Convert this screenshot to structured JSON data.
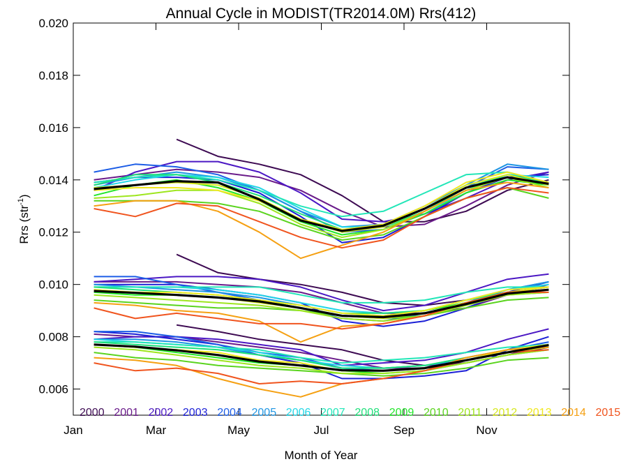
{
  "chart_data": {
    "type": "line",
    "title": "Annual Cycle in MODIST(TR2014.0M) Rrs(412)",
    "xlabel": "Month of Year",
    "ylabel_main": "Rrs (str",
    "ylabel_sup": "-1",
    "ylabel_tail": ")",
    "xlim": [
      1,
      13
    ],
    "ylim": [
      0.005,
      0.02
    ],
    "x_ticks": [
      {
        "x": 1,
        "label": "Jan"
      },
      {
        "x": 3,
        "label": "Mar"
      },
      {
        "x": 5,
        "label": "May"
      },
      {
        "x": 7,
        "label": "Jul"
      },
      {
        "x": 9,
        "label": "Sep"
      },
      {
        "x": 11,
        "label": "Nov"
      }
    ],
    "y_ticks": [
      {
        "y": 0.006,
        "label": "0.006"
      },
      {
        "y": 0.008,
        "label": "0.008"
      },
      {
        "y": 0.01,
        "label": "0.010"
      },
      {
        "y": 0.012,
        "label": "0.012"
      },
      {
        "y": 0.014,
        "label": "0.014"
      },
      {
        "y": 0.016,
        "label": "0.016"
      },
      {
        "y": 0.018,
        "label": "0.018"
      },
      {
        "y": 0.02,
        "label": "0.020"
      }
    ],
    "grid": false,
    "legend_position": "bottom-inside",
    "months": [
      1.5,
      2.5,
      3.5,
      4.5,
      5.5,
      6.5,
      7.5,
      8.5,
      9.5,
      10.5,
      11.5,
      12.5
    ],
    "mean_color": "#000000",
    "series": [
      {
        "name": "2000",
        "color": "#3d0a52",
        "upper": [
          null,
          null,
          0.01555,
          0.0149,
          0.0146,
          0.0142,
          0.0134,
          0.0124,
          0.0124,
          0.0128,
          0.0136,
          0.014
        ],
        "middle": [
          null,
          null,
          0.01115,
          0.01045,
          0.0102,
          0.01,
          0.0097,
          0.0093,
          0.0092,
          0.0094,
          0.0097,
          0.0099
        ],
        "lower": [
          null,
          null,
          0.00845,
          0.0082,
          0.0079,
          0.0077,
          0.0075,
          0.0071,
          0.0069,
          0.007,
          0.0073,
          0.0076
        ]
      },
      {
        "name": "2001",
        "color": "#6a1b8a",
        "upper": [
          0.014,
          0.0142,
          0.0144,
          0.0143,
          0.0141,
          0.0136,
          0.0128,
          0.0122,
          0.0123,
          0.013,
          0.0138,
          0.0143
        ],
        "middle": [
          0.0101,
          0.0101,
          0.0101,
          0.01,
          0.0099,
          0.0097,
          0.0093,
          0.0089,
          0.0089,
          0.0091,
          0.0096,
          0.01
        ],
        "lower": [
          0.0081,
          0.008,
          0.008,
          0.0078,
          0.0076,
          0.0074,
          0.0071,
          0.0068,
          0.0068,
          0.007,
          0.0073,
          0.0077
        ]
      },
      {
        "name": "2002",
        "color": "#4b17c4",
        "upper": [
          0.0136,
          0.0143,
          0.0147,
          0.0147,
          0.0143,
          0.0135,
          0.0125,
          0.0124,
          0.0127,
          0.0133,
          0.014,
          0.0143
        ],
        "middle": [
          0.0101,
          0.0102,
          0.0103,
          0.0103,
          0.0102,
          0.0099,
          0.0094,
          0.009,
          0.0092,
          0.0097,
          0.0102,
          0.0104
        ],
        "lower": [
          0.0079,
          0.008,
          0.008,
          0.0079,
          0.0077,
          0.0075,
          0.0069,
          0.007,
          0.0071,
          0.0074,
          0.0079,
          0.0083
        ]
      },
      {
        "name": "2003",
        "color": "#1b1fd6",
        "upper": [
          0.0139,
          0.0141,
          0.0141,
          0.014,
          0.0135,
          0.0126,
          0.0116,
          0.0118,
          0.0126,
          0.0135,
          0.0141,
          0.0142
        ],
        "middle": [
          0.01,
          0.01,
          0.01,
          0.0098,
          0.0096,
          0.0093,
          0.0086,
          0.0084,
          0.0086,
          0.0091,
          0.0097,
          0.0101
        ],
        "lower": [
          0.0082,
          0.0081,
          0.0079,
          0.0077,
          0.0073,
          0.007,
          0.0064,
          0.0064,
          0.0065,
          0.0067,
          0.0075,
          0.008
        ]
      },
      {
        "name": "2004",
        "color": "#1c5de6",
        "upper": [
          0.0143,
          0.0146,
          0.0145,
          0.0142,
          0.0136,
          0.0128,
          0.012,
          0.0121,
          0.0128,
          0.0137,
          0.0145,
          0.0144
        ],
        "middle": [
          0.0103,
          0.0103,
          0.01,
          0.0097,
          0.0094,
          0.0091,
          0.0087,
          0.0086,
          0.0089,
          0.0093,
          0.0098,
          0.0101
        ],
        "lower": [
          0.0082,
          0.0082,
          0.008,
          0.0077,
          0.0074,
          0.0072,
          0.0068,
          0.0067,
          0.0068,
          0.0071,
          0.0075,
          0.0078
        ]
      },
      {
        "name": "2005",
        "color": "#1e95e3",
        "upper": [
          0.0138,
          0.0141,
          0.0143,
          0.0141,
          0.0136,
          0.0128,
          0.0122,
          0.0123,
          0.013,
          0.0138,
          0.0146,
          0.0144
        ],
        "middle": [
          0.01,
          0.0099,
          0.0098,
          0.0097,
          0.0095,
          0.0092,
          0.0089,
          0.0088,
          0.009,
          0.0093,
          0.0098,
          0.0101
        ],
        "lower": [
          0.0079,
          0.0079,
          0.0078,
          0.0076,
          0.0073,
          0.0071,
          0.0068,
          0.0068,
          0.0069,
          0.0071,
          0.0075,
          0.0077
        ]
      },
      {
        "name": "2006",
        "color": "#22d6e6",
        "upper": [
          0.0137,
          0.014,
          0.0142,
          0.0141,
          0.0137,
          0.0129,
          0.0122,
          0.0122,
          0.0127,
          0.0136,
          0.0142,
          0.0141
        ],
        "middle": [
          0.0099,
          0.0099,
          0.0099,
          0.0098,
          0.0096,
          0.0093,
          0.009,
          0.0089,
          0.009,
          0.0094,
          0.0098,
          0.01
        ],
        "lower": [
          0.0079,
          0.0078,
          0.0077,
          0.0076,
          0.0074,
          0.0071,
          0.0069,
          0.0068,
          0.0069,
          0.0072,
          0.0075,
          0.0077
        ]
      },
      {
        "name": "2007",
        "color": "#22e6b8",
        "upper": [
          0.0139,
          0.0141,
          0.0142,
          0.014,
          0.0136,
          0.013,
          0.0126,
          0.0128,
          0.0135,
          0.0142,
          0.0143,
          0.0139
        ],
        "middle": [
          0.0099,
          0.0099,
          0.0099,
          0.0099,
          0.0099,
          0.0096,
          0.0093,
          0.0093,
          0.0094,
          0.0097,
          0.0099,
          0.0099
        ],
        "lower": [
          0.0078,
          0.0078,
          0.0077,
          0.0076,
          0.0075,
          0.0072,
          0.007,
          0.0071,
          0.0072,
          0.0074,
          0.0076,
          0.0077
        ]
      },
      {
        "name": "2008",
        "color": "#1ee07a",
        "upper": [
          0.0138,
          0.0142,
          0.0142,
          0.0139,
          0.0134,
          0.0127,
          0.0121,
          0.0122,
          0.0128,
          0.0137,
          0.0142,
          0.0139
        ],
        "middle": [
          0.0099,
          0.0098,
          0.0097,
          0.0096,
          0.0094,
          0.0092,
          0.0089,
          0.0089,
          0.009,
          0.0094,
          0.0097,
          0.0098
        ],
        "lower": [
          0.0078,
          0.0077,
          0.0076,
          0.0075,
          0.0073,
          0.0071,
          0.0068,
          0.0068,
          0.0069,
          0.0072,
          0.0075,
          0.0076
        ]
      },
      {
        "name": "2009",
        "color": "#22e62a",
        "upper": [
          0.0134,
          0.0138,
          0.014,
          0.0137,
          0.0132,
          0.0124,
          0.0119,
          0.0121,
          0.0127,
          0.0135,
          0.014,
          0.0138
        ],
        "middle": [
          0.0097,
          0.0096,
          0.0096,
          0.0095,
          0.0094,
          0.0091,
          0.0088,
          0.0088,
          0.009,
          0.0093,
          0.0096,
          0.0097
        ],
        "lower": [
          0.0077,
          0.0076,
          0.0074,
          0.0072,
          0.007,
          0.0069,
          0.0067,
          0.0066,
          0.0067,
          0.007,
          0.0073,
          0.0075
        ]
      },
      {
        "name": "2010",
        "color": "#5ad41e",
        "upper": [
          0.0132,
          0.0132,
          0.0132,
          0.0131,
          0.0128,
          0.0122,
          0.0117,
          0.0119,
          0.0126,
          0.0133,
          0.0137,
          0.0133
        ],
        "middle": [
          0.0094,
          0.0093,
          0.0092,
          0.0091,
          0.0091,
          0.009,
          0.0088,
          0.0087,
          0.0088,
          0.0091,
          0.0094,
          0.0095
        ],
        "lower": [
          0.0074,
          0.0072,
          0.0071,
          0.0069,
          0.0068,
          0.0067,
          0.0066,
          0.0065,
          0.0066,
          0.0068,
          0.0071,
          0.0072
        ]
      },
      {
        "name": "2011",
        "color": "#9ee61e",
        "upper": [
          0.0133,
          0.0134,
          0.0136,
          0.0136,
          0.0131,
          0.0123,
          0.0118,
          0.0121,
          0.0128,
          0.0136,
          0.0141,
          0.0137
        ],
        "middle": [
          0.0096,
          0.0095,
          0.0094,
          0.0093,
          0.0092,
          0.009,
          0.0087,
          0.0086,
          0.0088,
          0.0092,
          0.0096,
          0.0097
        ],
        "lower": [
          0.0076,
          0.0075,
          0.0073,
          0.0071,
          0.0069,
          0.0068,
          0.0066,
          0.0066,
          0.0067,
          0.007,
          0.0073,
          0.0075
        ]
      },
      {
        "name": "2012",
        "color": "#d6e81e",
        "upper": [
          0.0137,
          0.0138,
          0.0139,
          0.0138,
          0.0133,
          0.0125,
          0.012,
          0.0122,
          0.0129,
          0.0138,
          0.0142,
          0.0138
        ],
        "middle": [
          0.0098,
          0.0097,
          0.0096,
          0.0095,
          0.0093,
          0.0091,
          0.0088,
          0.0087,
          0.0089,
          0.0093,
          0.0097,
          0.0099
        ],
        "lower": [
          0.0077,
          0.0076,
          0.0075,
          0.0073,
          0.0071,
          0.0069,
          0.0067,
          0.0067,
          0.0068,
          0.0071,
          0.0074,
          0.0076
        ]
      },
      {
        "name": "2013",
        "color": "#f0e81e",
        "upper": [
          0.0136,
          0.0137,
          0.0137,
          0.0136,
          0.0132,
          0.0125,
          0.0121,
          0.0123,
          0.013,
          0.0139,
          0.0143,
          0.0139
        ],
        "middle": [
          0.0098,
          0.0097,
          0.0097,
          0.0096,
          0.0094,
          0.0092,
          0.0089,
          0.0088,
          0.009,
          0.0094,
          0.0098,
          0.0099
        ],
        "lower": [
          0.0077,
          0.0076,
          0.0075,
          0.0074,
          0.0071,
          0.007,
          0.0067,
          0.0067,
          0.0068,
          0.0071,
          0.0075,
          0.0077
        ]
      },
      {
        "name": "2014",
        "color": "#f5a012",
        "upper": [
          0.013,
          0.0132,
          0.0132,
          0.0128,
          0.012,
          0.011,
          0.0115,
          0.012,
          0.0128,
          0.0136,
          0.0139,
          0.0137
        ],
        "middle": [
          0.0093,
          0.0092,
          0.009,
          0.0089,
          0.0086,
          0.0078,
          0.0084,
          0.0085,
          0.0088,
          0.0093,
          0.0097,
          0.0098
        ],
        "lower": [
          0.0072,
          0.0071,
          0.0069,
          0.0064,
          0.006,
          0.0057,
          0.0062,
          0.0064,
          0.0067,
          0.0072,
          0.0075,
          0.0076
        ]
      },
      {
        "name": "2015",
        "color": "#f0541e",
        "upper": [
          0.0129,
          0.0126,
          0.0131,
          0.013,
          0.0124,
          0.0118,
          0.0114,
          0.0117,
          0.0126,
          0.0133,
          0.0137,
          0.0135
        ],
        "middle": [
          0.0091,
          0.0087,
          0.0089,
          0.0087,
          0.0085,
          0.0085,
          0.0083,
          0.0085,
          0.0088,
          0.0093,
          0.0097,
          0.0097
        ],
        "lower": [
          0.007,
          0.0067,
          0.0068,
          0.0066,
          0.0062,
          0.0063,
          0.0062,
          0.0064,
          0.0067,
          0.0071,
          0.0074,
          0.0075
        ]
      }
    ],
    "mean": {
      "upper": [
        0.01365,
        0.0138,
        0.01395,
        0.0139,
        0.01325,
        0.01245,
        0.01205,
        0.01225,
        0.0129,
        0.0137,
        0.0141,
        0.01385
      ],
      "middle": [
        0.00975,
        0.00968,
        0.0096,
        0.0095,
        0.00935,
        0.0091,
        0.0088,
        0.00875,
        0.0089,
        0.00925,
        0.00965,
        0.0098
      ],
      "lower": [
        0.0077,
        0.00762,
        0.00748,
        0.0073,
        0.00705,
        0.0069,
        0.00672,
        0.0067,
        0.0068,
        0.0071,
        0.0074,
        0.00768
      ]
    }
  }
}
